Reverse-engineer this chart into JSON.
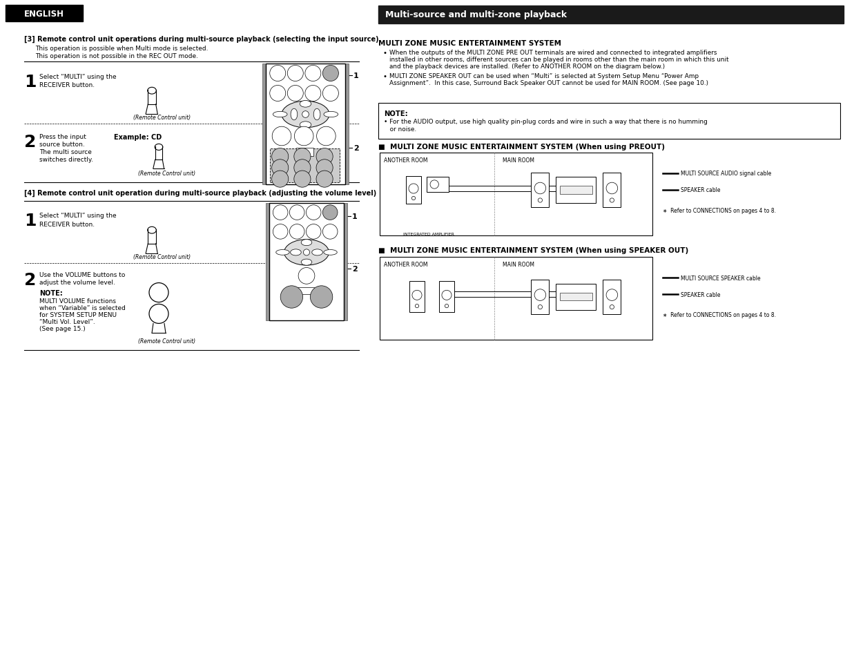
{
  "page_bg": "#ffffff",
  "english_box_bg": "#000000",
  "english_text": "ENGLISH",
  "english_text_color": "#ffffff",
  "section3_title": "[3] Remote control unit operations during multi-source playback (selecting the input source)",
  "section3_line1": "This operation is possible when Multi mode is selected.",
  "section3_line2": "This operation is not possible in the REC OUT mode.",
  "section4_title": "[4] Remote control unit operation during multi-source playback (adjusting the volume level)",
  "right_header": "Multi-source and multi-zone playback",
  "right_header_bg": "#1a1a1a",
  "right_header_text_color": "#ffffff",
  "multi_zone_title": "MULTI ZONE MUSIC ENTERTAINMENT SYSTEM",
  "bullet1_line1": "When the outputs of the MULTI ZONE PRE OUT terminals are wired and connected to integrated amplifiers",
  "bullet1_line2": "installed in other rooms, different sources can be played in rooms other than the main room in which this unit",
  "bullet1_line3": "and the playback devices are installed. (Refer to ANOTHER ROOM on the diagram below.)",
  "bullet2_line1": "MULTI ZONE SPEAKER OUT can be used when “Multi” is selected at System Setup Menu “Power Amp",
  "bullet2_line2": "Assignment”.  In this case, Surround Back Speaker OUT cannot be used for MAIN ROOM. (See page 10.)",
  "note_label": "NOTE:",
  "note_line1": "• For the AUDIO output, use high quality pin-plug cords and wire in such a way that there is no humming",
  "note_line2": "   or noise.",
  "preout_title": "■  MULTI ZONE MUSIC ENTERTAINMENT SYSTEM (When using PREOUT)",
  "speaker_out_title": "■  MULTI ZONE MUSIC ENTERTAINMENT SYSTEM (When using SPEAKER OUT)",
  "another_room": "ANOTHER ROOM",
  "main_room": "MAIN ROOM",
  "integrated_amp": "INTEGRATED AMPLIFIER",
  "legend_preout_1": "MULTI SOURCE AUDIO signal cable",
  "legend_preout_2": "SPEAKER cable",
  "legend_note": "∗  Refer to CONNECTIONS on pages 4 to 8.",
  "legend_speaker_1": "MULTI SOURCE SPEAKER cable",
  "legend_speaker_2": "SPEAKER cable",
  "legend_note2": "∗  Refer to CONNECTIONS on pages 4 to 8.",
  "step1_3_text": "Select “MULTI” using the\nRECEIVER button.",
  "step2_3_line1": "Press the input",
  "step2_3_line2": "source button.",
  "step2_3_line3": "The multi source",
  "step2_3_line4": "switches directly.",
  "step2_3_example": "Example: CD",
  "remote_label": "(Remote Control unit)",
  "step1_4_text": "Select “MULTI” using the\nRECEIVER button.",
  "step2_4_line1": "Use the VOLUME buttons to",
  "step2_4_line2": "adjust the volume level.",
  "note2_head": "NOTE:",
  "note2_line1": "MULTI VOLUME functions",
  "note2_line2": "when “Variable” is selected",
  "note2_line3": "for SYSTEM SETUP MENU",
  "note2_line4": "“Multi Vol. Level”.",
  "note2_line5": "(See page 15.)",
  "divider_color": "#000000",
  "gray_btn": "#aaaaaa",
  "white_btn": "#ffffff",
  "remote_body_color": "#ffffff",
  "remote_edge_color": "#000000",
  "remote_side_color": "#888888"
}
